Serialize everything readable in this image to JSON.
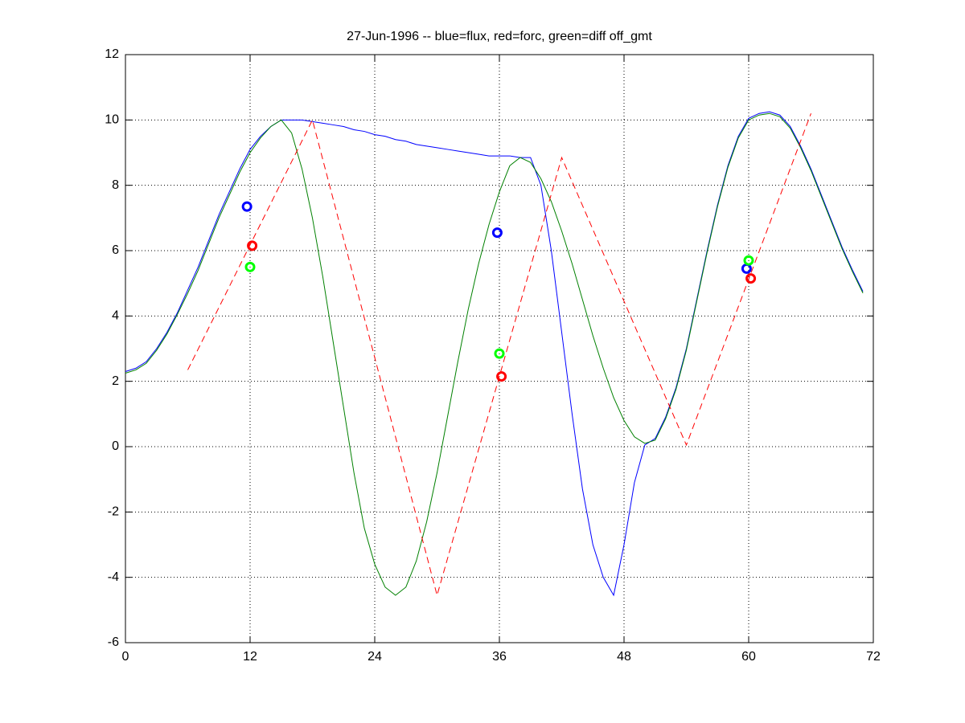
{
  "chart_data": {
    "type": "line",
    "title": "27-Jun-1996 -- blue=flux, red=forc, green=diff off_gmt",
    "x": [
      0,
      1,
      2,
      3,
      4,
      5,
      6,
      7,
      8,
      9,
      10,
      11,
      12,
      13,
      14,
      15,
      16,
      17,
      18,
      19,
      20,
      21,
      22,
      23,
      24,
      25,
      26,
      27,
      28,
      29,
      30,
      31,
      32,
      33,
      34,
      35,
      36,
      37,
      38,
      39,
      40,
      41,
      42,
      43,
      44,
      45,
      46,
      47,
      48,
      49,
      50,
      51,
      52,
      53,
      54,
      55,
      56,
      57,
      58,
      59,
      60,
      61,
      62,
      63,
      64,
      65,
      66,
      67,
      68,
      69,
      70,
      71
    ],
    "series": [
      {
        "color": "#0000ff",
        "dash": false,
        "values": [
          2.3,
          2.4,
          2.6,
          3.0,
          3.5,
          4.1,
          4.8,
          5.5,
          6.3,
          7.1,
          7.8,
          8.5,
          9.1,
          9.5,
          9.8,
          10.0,
          10.0,
          10.0,
          9.95,
          9.9,
          9.85,
          9.8,
          9.7,
          9.65,
          9.55,
          9.5,
          9.4,
          9.35,
          9.25,
          9.2,
          9.15,
          9.1,
          9.05,
          9.0,
          8.95,
          8.9,
          8.9,
          8.9,
          8.85,
          8.85,
          8.0,
          6.0,
          3.5,
          1.0,
          -1.3,
          -3.0,
          -4.0,
          -4.55,
          -3.0,
          -1.1,
          0.05,
          0.25,
          0.9,
          1.8,
          3.0,
          4.5,
          6.0,
          7.4,
          8.6,
          9.5,
          10.05,
          10.2,
          10.25,
          10.15,
          9.8,
          9.2,
          8.5,
          7.7,
          6.9,
          6.1,
          5.4,
          4.75
        ]
      },
      {
        "color": "#008000",
        "dash": false,
        "values": [
          2.25,
          2.35,
          2.55,
          2.95,
          3.45,
          4.05,
          4.7,
          5.4,
          6.2,
          7.0,
          7.7,
          8.4,
          9.0,
          9.45,
          9.8,
          10.0,
          9.6,
          8.5,
          7.0,
          5.2,
          3.2,
          1.2,
          -0.8,
          -2.5,
          -3.6,
          -4.3,
          -4.55,
          -4.3,
          -3.5,
          -2.3,
          -0.8,
          0.9,
          2.6,
          4.2,
          5.6,
          6.8,
          7.8,
          8.6,
          8.85,
          8.7,
          8.2,
          7.5,
          6.6,
          5.6,
          4.5,
          3.4,
          2.4,
          1.5,
          0.8,
          0.3,
          0.1,
          0.2,
          0.85,
          1.75,
          2.95,
          4.45,
          5.95,
          7.35,
          8.55,
          9.45,
          10.0,
          10.15,
          10.2,
          10.1,
          9.75,
          9.15,
          8.45,
          7.65,
          6.85,
          6.05,
          5.35,
          4.7
        ]
      },
      {
        "color": "#ff0000",
        "dash": true,
        "x": [
          6,
          18,
          30,
          42,
          54,
          66
        ],
        "values": [
          2.35,
          10.0,
          -4.55,
          8.85,
          0.05,
          10.2
        ]
      }
    ],
    "markers": [
      {
        "color": "#0000ff",
        "x": [
          11.7,
          35.8,
          59.8
        ],
        "y": [
          7.35,
          6.55,
          5.45
        ]
      },
      {
        "color": "#ff0000",
        "x": [
          12.2,
          36.2,
          60.2
        ],
        "y": [
          6.15,
          2.15,
          5.15
        ]
      },
      {
        "color": "#00ff00",
        "x": [
          12.0,
          36.0,
          60.0
        ],
        "y": [
          5.5,
          2.85,
          5.7
        ]
      }
    ],
    "xlim": [
      0,
      72
    ],
    "xticks": [
      0,
      12,
      24,
      36,
      48,
      60,
      72
    ],
    "ylim": [
      -6,
      12
    ],
    "yticks": [
      -6,
      -4,
      -2,
      0,
      2,
      4,
      6,
      8,
      10,
      12
    ],
    "grid": true
  }
}
